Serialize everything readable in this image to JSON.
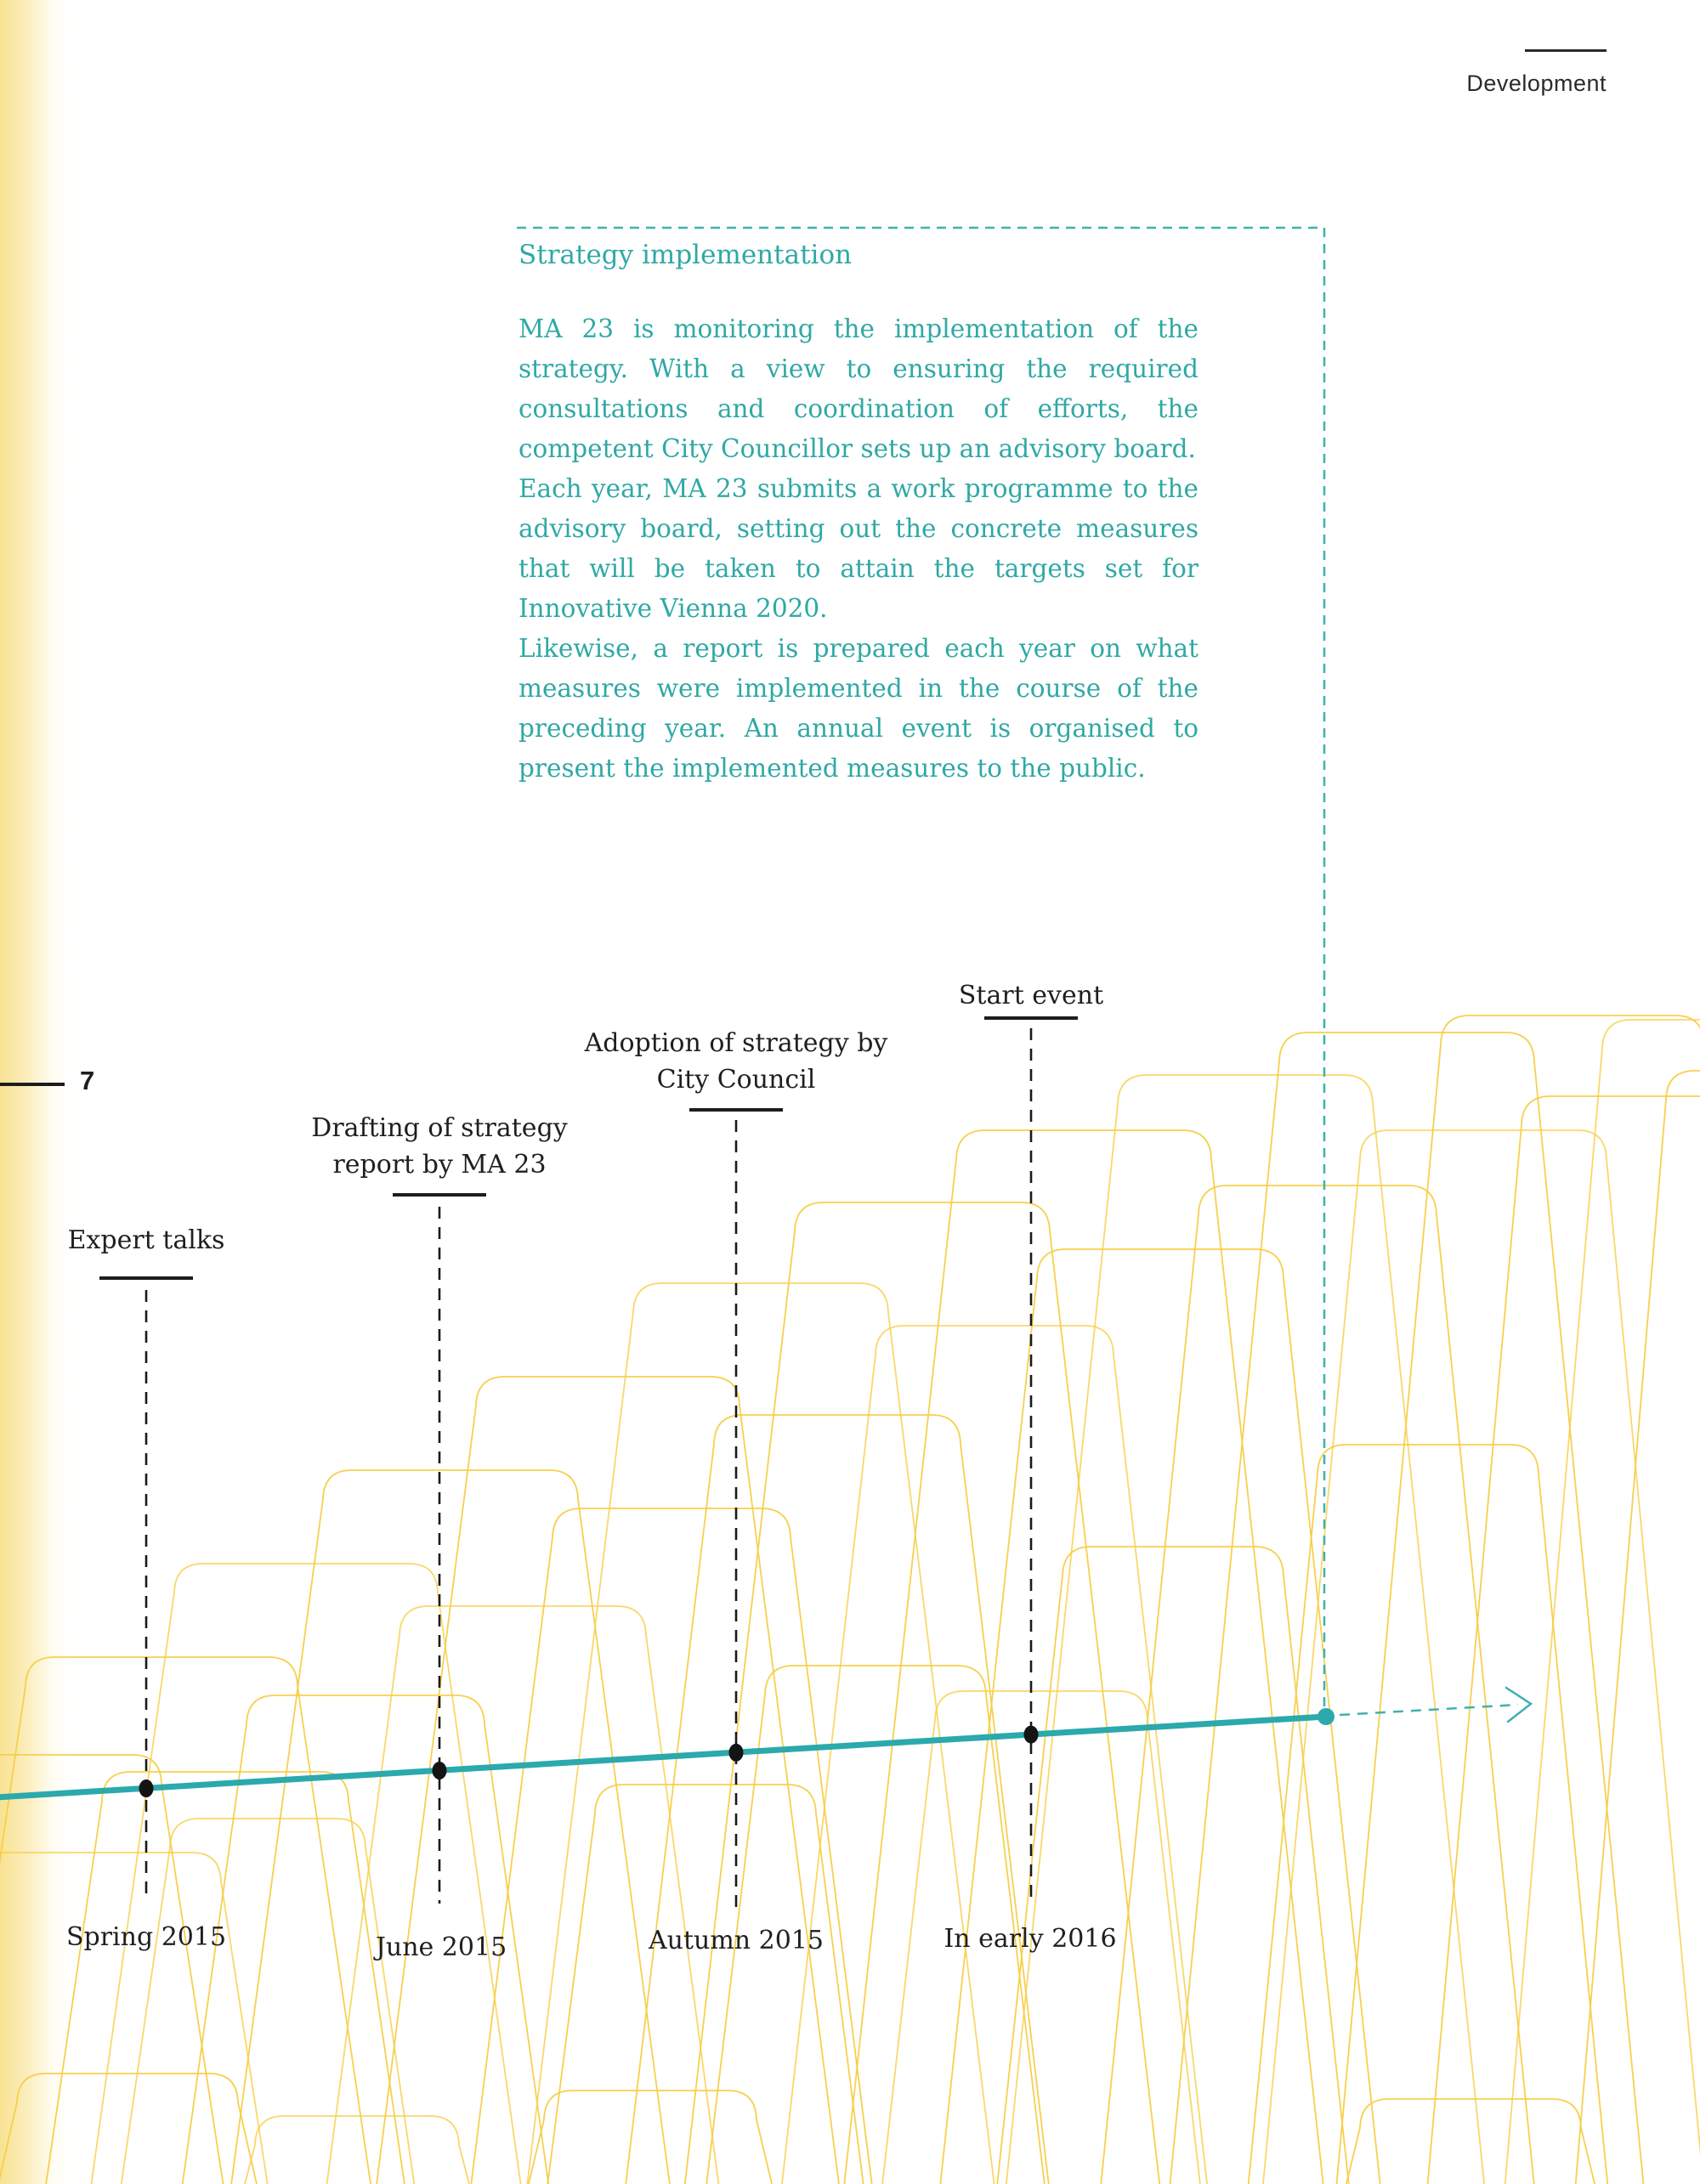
{
  "page": {
    "number": "7",
    "section": "Development"
  },
  "info_box": {
    "title": "Strategy implementation",
    "paragraphs": [
      "MA 23 is monitoring the implementation of the strategy. With a view to ensuring the required consultations and coordination of efforts, the competent City Councillor sets up an advisory board.",
      "Each year, MA 23 submits a work programme to the advisory board, setting out the concrete measures that will be taken to attain the targets set for Innovative Vienna 2020.",
      "Likewise, a report is prepared each year on what measures were implemented in the course of the preceding year. An annual event is organised to present the implemented measures to the public."
    ]
  },
  "timeline": {
    "milestones": [
      {
        "label": "Expert talks",
        "date": "Spring 2015"
      },
      {
        "label": "Drafting of strategy report by MA 23",
        "date": "June 2015"
      },
      {
        "label": "Adoption of strategy by City Council",
        "date": "Autumn 2015"
      },
      {
        "label": "Start event",
        "date": "In early 2016"
      }
    ],
    "future_connector": "arrow-right"
  },
  "colors": {
    "teal_text": "#2fa9a5",
    "teal_line": "#2ba9ad",
    "teal_dash": "#3fb2ae",
    "yellow_pattern": "#f7ce46",
    "yellow_strip": "#f8e08c",
    "ink": "#1d1d1d"
  }
}
